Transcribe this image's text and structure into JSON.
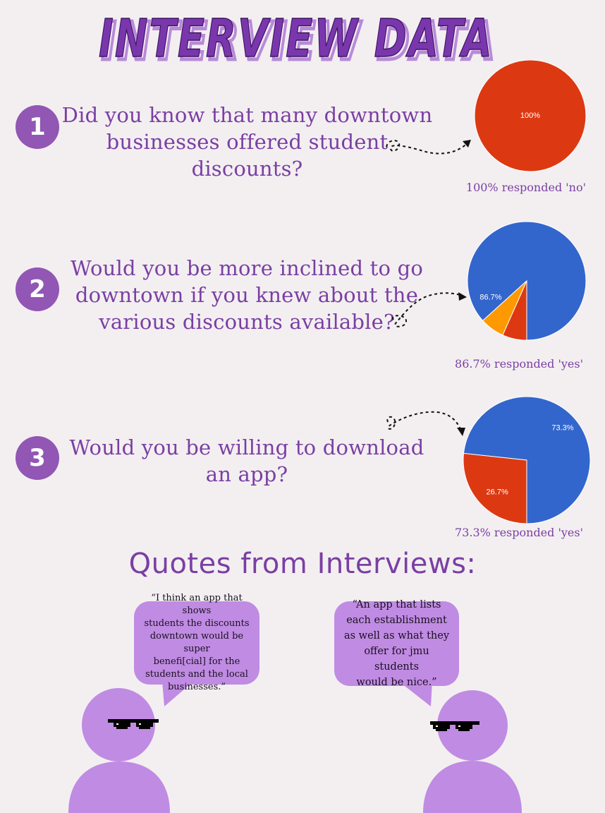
{
  "title": "INTERVIEW DATA",
  "questions": [
    {
      "number": "1",
      "lines": [
        "Did you know that many downtown",
        "businesses offered student",
        "discounts?"
      ],
      "caption": "100% responded 'no'"
    },
    {
      "number": "2",
      "lines": [
        "Would you be more inclined to go",
        "downtown if you knew about the",
        "various discounts available?"
      ],
      "caption": "86.7% responded 'yes'"
    },
    {
      "number": "3",
      "lines": [
        "Would you be willing to download",
        "an app?"
      ],
      "caption": "73.3% responded 'yes'"
    }
  ],
  "chart_data": [
    {
      "type": "pie",
      "slices": [
        {
          "value": 100,
          "label": "100%",
          "color": "#dc3912"
        }
      ]
    },
    {
      "type": "pie",
      "slices": [
        {
          "value": 86.7,
          "label": "86.7%",
          "color": "#3366cc"
        },
        {
          "value": 6.65,
          "label": "",
          "color": "#dc3912"
        },
        {
          "value": 6.65,
          "label": "",
          "color": "#ff9900"
        }
      ]
    },
    {
      "type": "pie",
      "slices": [
        {
          "value": 73.3,
          "label": "73.3%",
          "color": "#3366cc"
        },
        {
          "value": 26.7,
          "label": "26.7%",
          "color": "#dc3912"
        }
      ]
    }
  ],
  "quotes_heading": "Quotes from Interviews:",
  "quotes": [
    {
      "lines": [
        "“I think an app that shows",
        "students the discounts",
        "downtown would be super",
        "benefi[cial] for the",
        "students and the local",
        "businesses.”"
      ]
    },
    {
      "lines": [
        "“An app that lists",
        "each establishment",
        "as well as what they",
        "offer for jmu students",
        "would be nice.”"
      ]
    }
  ],
  "colors": {
    "background": "#f3eff1",
    "purple_text": "#7a3fa3",
    "number_circle": "#9256b4",
    "person": "#c08be3"
  }
}
